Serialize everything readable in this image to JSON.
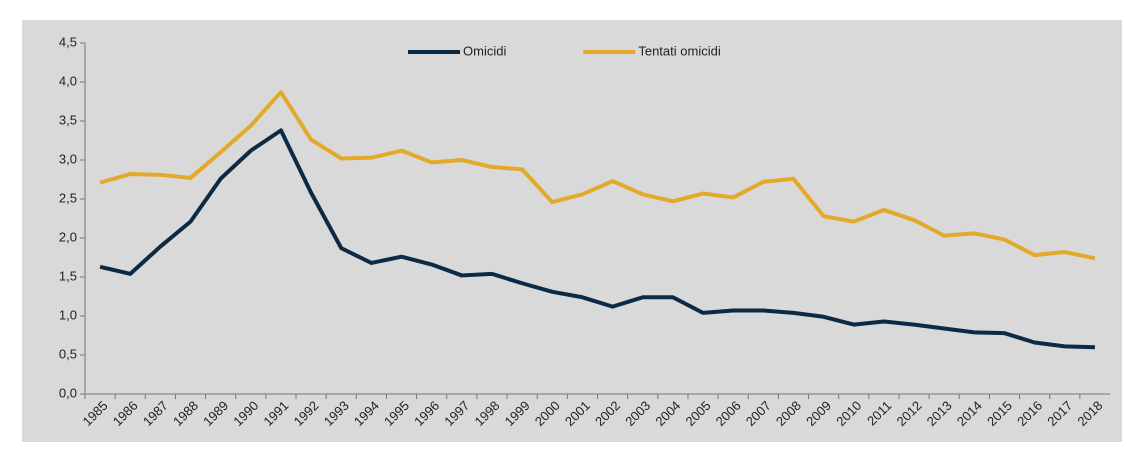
{
  "chart_data": {
    "type": "line",
    "categories": [
      "1985",
      "1986",
      "1987",
      "1988",
      "1989",
      "1990",
      "1991",
      "1992",
      "1993",
      "1994",
      "1995",
      "1996",
      "1997",
      "1998",
      "1999",
      "2000",
      "2001",
      "2002",
      "2003",
      "2004",
      "2005",
      "2006",
      "2007",
      "2008",
      "2009",
      "2010",
      "2011",
      "2012",
      "2013",
      "2014",
      "2015",
      "2016",
      "2017",
      "2018"
    ],
    "series": [
      {
        "name": "Omicidi",
        "color": "#0d2a44",
        "values": [
          1.63,
          1.54,
          1.89,
          2.21,
          2.76,
          3.12,
          3.38,
          2.58,
          1.87,
          1.68,
          1.76,
          1.66,
          1.52,
          1.54,
          1.42,
          1.31,
          1.24,
          1.12,
          1.24,
          1.24,
          1.04,
          1.07,
          1.07,
          1.04,
          0.99,
          0.89,
          0.93,
          0.89,
          0.84,
          0.79,
          0.78,
          0.66,
          0.61,
          0.6
        ]
      },
      {
        "name": "Tentati omicidi",
        "color": "#e3a92a",
        "values": [
          2.71,
          2.82,
          2.81,
          2.77,
          3.1,
          3.44,
          3.87,
          3.26,
          3.02,
          3.03,
          3.12,
          2.97,
          3.0,
          2.91,
          2.88,
          2.46,
          2.56,
          2.73,
          2.56,
          2.47,
          2.57,
          2.52,
          2.72,
          2.76,
          2.28,
          2.21,
          2.36,
          2.23,
          2.03,
          2.06,
          1.98,
          1.78,
          1.82,
          1.74
        ]
      }
    ],
    "ylim": [
      0,
      4.5
    ],
    "yticks": [
      {
        "value": 0,
        "label": "0,0"
      },
      {
        "value": 0.5,
        "label": "0,5"
      },
      {
        "value": 1,
        "label": "1,0"
      },
      {
        "value": 1.5,
        "label": "1,5"
      },
      {
        "value": 2,
        "label": "2,0"
      },
      {
        "value": 2.5,
        "label": "2,5"
      },
      {
        "value": 3,
        "label": "3,0"
      },
      {
        "value": 3.5,
        "label": "3,5"
      },
      {
        "value": 4,
        "label": "4,0"
      },
      {
        "value": 4.5,
        "label": "4,5"
      }
    ],
    "grid": false,
    "legend": "top"
  }
}
